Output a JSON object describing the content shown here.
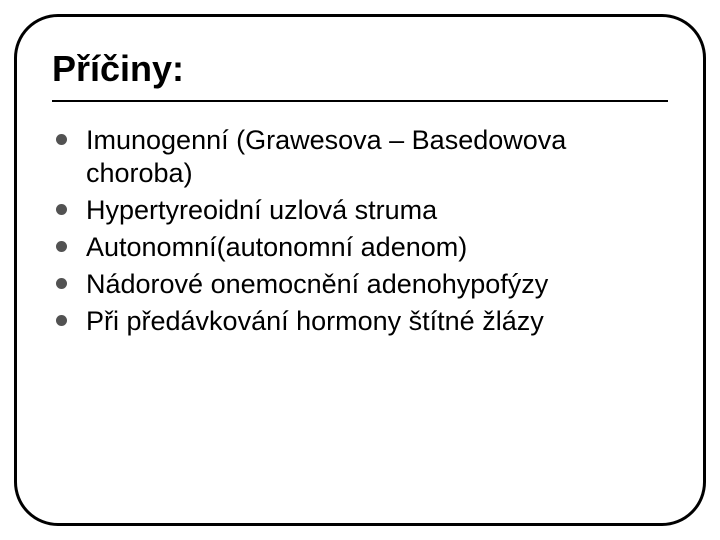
{
  "slide": {
    "title": "Příčiny:",
    "title_fontsize": 36,
    "title_color": "#000000",
    "rule_color": "#000000",
    "rule_thickness": 2.5,
    "frame": {
      "border_color": "#000000",
      "border_width": 3,
      "border_radius": 44
    },
    "bullets": {
      "marker_color": "#525252",
      "marker_size": 11,
      "text_color": "#000000",
      "text_fontsize": 27,
      "items": [
        "Imunogenní (Grawesova – Basedowova choroba)",
        "Hypertyreoidní uzlová struma",
        "Autonomní(autonomní adenom)",
        "Nádorové onemocnění adenohypofýzy",
        "Při předávkování hormony štítné žlázy"
      ]
    },
    "background_color": "#ffffff"
  }
}
